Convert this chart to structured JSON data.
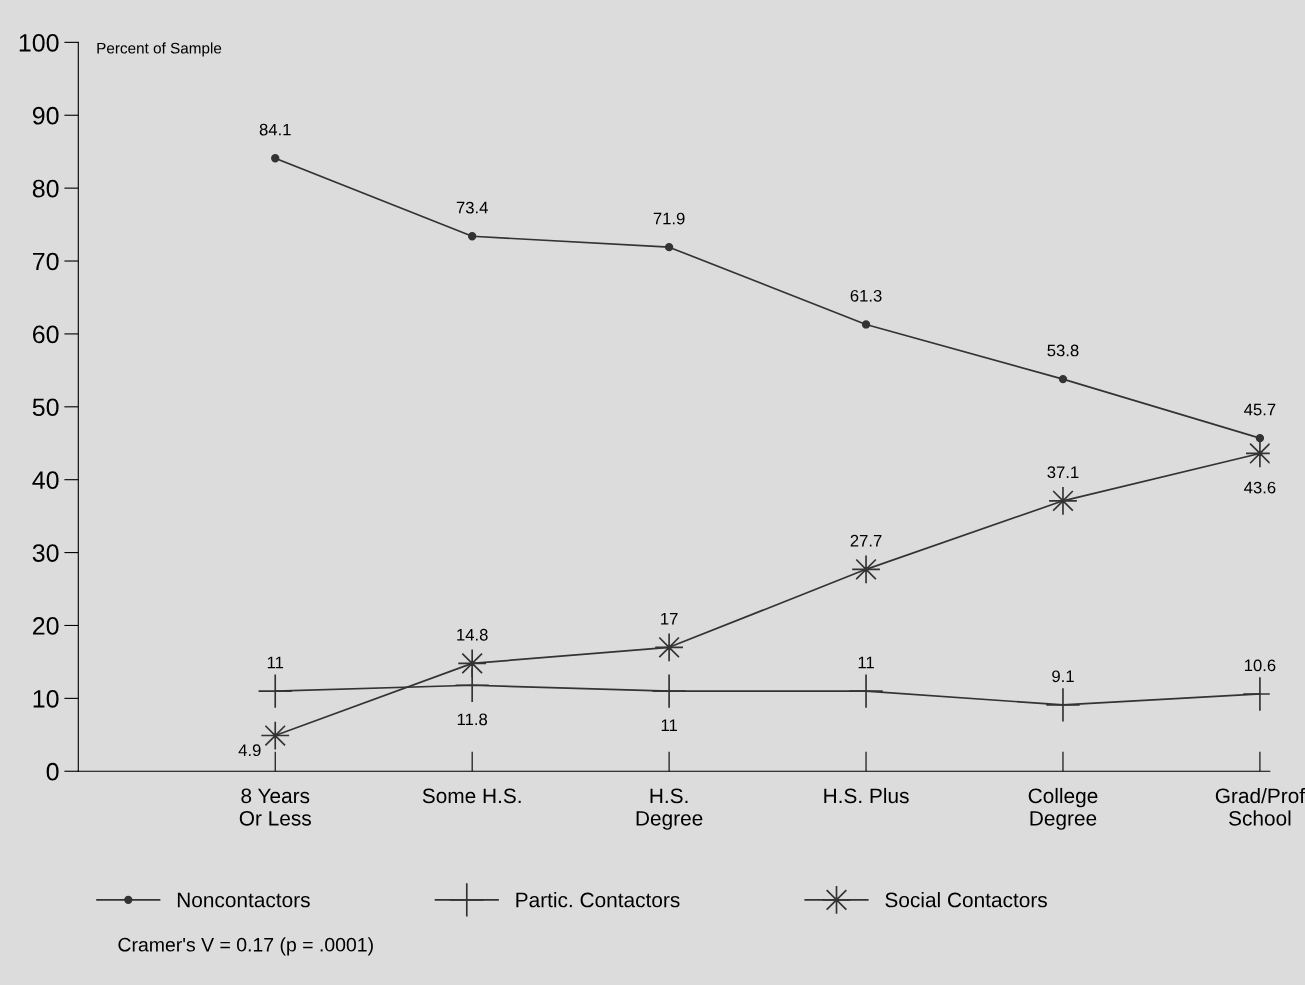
{
  "chart_data": {
    "type": "line",
    "ylabel": "Percent of Sample",
    "categories": [
      "8 Years\nOr Less",
      "Some H.S.",
      "H.S.\nDegree",
      "H.S. Plus",
      "College\nDegree",
      "Grad/Prof\nSchool"
    ],
    "series": [
      {
        "name": "Noncontactors",
        "color": "#333333",
        "marker": "circle",
        "values": [
          84.1,
          73.4,
          71.9,
          61.3,
          53.8,
          45.7
        ]
      },
      {
        "name": "Partic. Contactors",
        "color": "#333333",
        "marker": "cross",
        "values": [
          11,
          11.8,
          11,
          11,
          9.1,
          10.6
        ]
      },
      {
        "name": "Social Contactors",
        "color": "#333333",
        "marker": "star",
        "values": [
          4.9,
          14.8,
          17,
          27.7,
          37.1,
          43.6
        ]
      }
    ],
    "ylim": [
      0,
      100
    ],
    "yticks": [
      0,
      10,
      20,
      30,
      40,
      50,
      60,
      70,
      80,
      90,
      100
    ],
    "data_labels": true,
    "grid": false,
    "legend": "bottom",
    "line_style": "solid",
    "annotations": [
      "Cramer's V = 0.17 (p = .0001)"
    ]
  }
}
